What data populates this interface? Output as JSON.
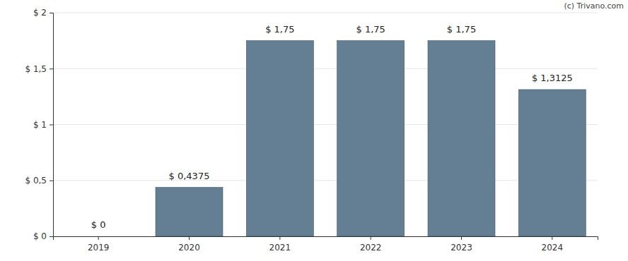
{
  "chart_data": {
    "type": "bar",
    "categories": [
      "2019",
      "2020",
      "2021",
      "2022",
      "2023",
      "2024"
    ],
    "values": [
      0,
      0.4375,
      1.75,
      1.75,
      1.75,
      1.3125
    ],
    "value_labels": [
      "$ 0",
      "$ 0,4375",
      "$ 1,75",
      "$ 1,75",
      "$ 1,75",
      "$ 1,3125"
    ],
    "data_labels": true,
    "color": "#647f93",
    "ylim": [
      0,
      2
    ],
    "yticks": [
      {
        "value": 0,
        "label": "$ 0"
      },
      {
        "value": 0.5,
        "label": "$ 0,5"
      },
      {
        "value": 1,
        "label": "$ 1"
      },
      {
        "value": 1.5,
        "label": "$ 1,5"
      },
      {
        "value": 2,
        "label": "$ 2"
      }
    ],
    "grid": true,
    "annotations": [
      "(c) Trivano.com"
    ]
  }
}
